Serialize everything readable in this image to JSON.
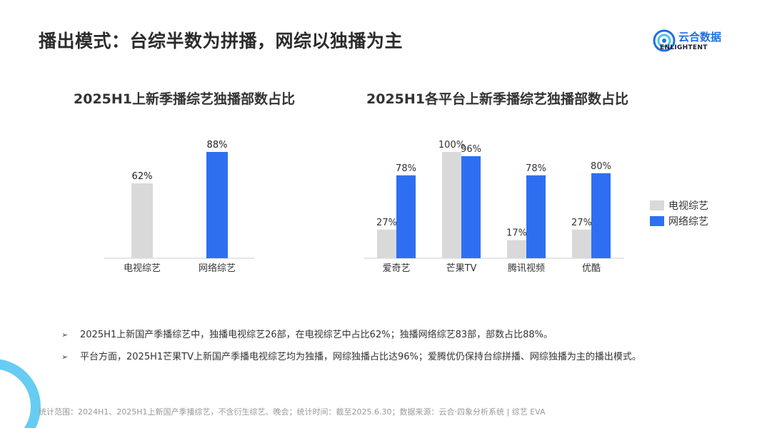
{
  "page": {
    "title": "播出模式：台综半数为拼播，网综以独播为主"
  },
  "logo": {
    "name_cn": "云合数据",
    "name_en": "ENLIGHTENT"
  },
  "legend": {
    "items": [
      {
        "label": "电视综艺",
        "color": "#d9d9d9"
      },
      {
        "label": "网络综艺",
        "color": "#2e6ff2"
      }
    ]
  },
  "chart_data": [
    {
      "type": "bar",
      "title": "2025H1上新季播综艺独播部数占比",
      "categories": [
        "电视综艺",
        "网络综艺"
      ],
      "values": [
        62,
        88
      ],
      "value_labels": [
        "62%",
        "88%"
      ],
      "colors": [
        "#d9d9d9",
        "#2e6ff2"
      ],
      "ylim": [
        0,
        100
      ]
    },
    {
      "type": "bar",
      "title": "2025H1各平台上新季播综艺独播部数占比",
      "categories": [
        "爱奇艺",
        "芒果TV",
        "腾讯视频",
        "优酷"
      ],
      "series": [
        {
          "name": "电视综艺",
          "color": "#d9d9d9",
          "values": [
            27,
            100,
            17,
            27
          ],
          "labels": [
            "27%",
            "100%",
            "17%",
            "27%"
          ]
        },
        {
          "name": "网络综艺",
          "color": "#2e6ff2",
          "values": [
            78,
            96,
            78,
            80
          ],
          "labels": [
            "78%",
            "96%",
            "78%",
            "80%"
          ]
        }
      ],
      "ylim": [
        0,
        100
      ],
      "legend": "right"
    }
  ],
  "bullets": [
    "2025H1上新国产季播综艺中，独播电视综艺26部，在电视综艺中占比62%；独播网络综艺83部，部数占比88%。",
    "平台方面，2025H1芒果TV上新国产季播电视综艺均为独播，网综独播占比达96%；爱腾优仍保持台综拼播、网综独播为主的播出模式。"
  ],
  "bullet_mark": "➢",
  "footnote": "统计范围：2024H1、2025H1上新国产季播综艺，不含衍生综艺、晚会；统计时间：截至2025.6.30；数据来源：云合·四象分析系统 | 综艺 EVA"
}
